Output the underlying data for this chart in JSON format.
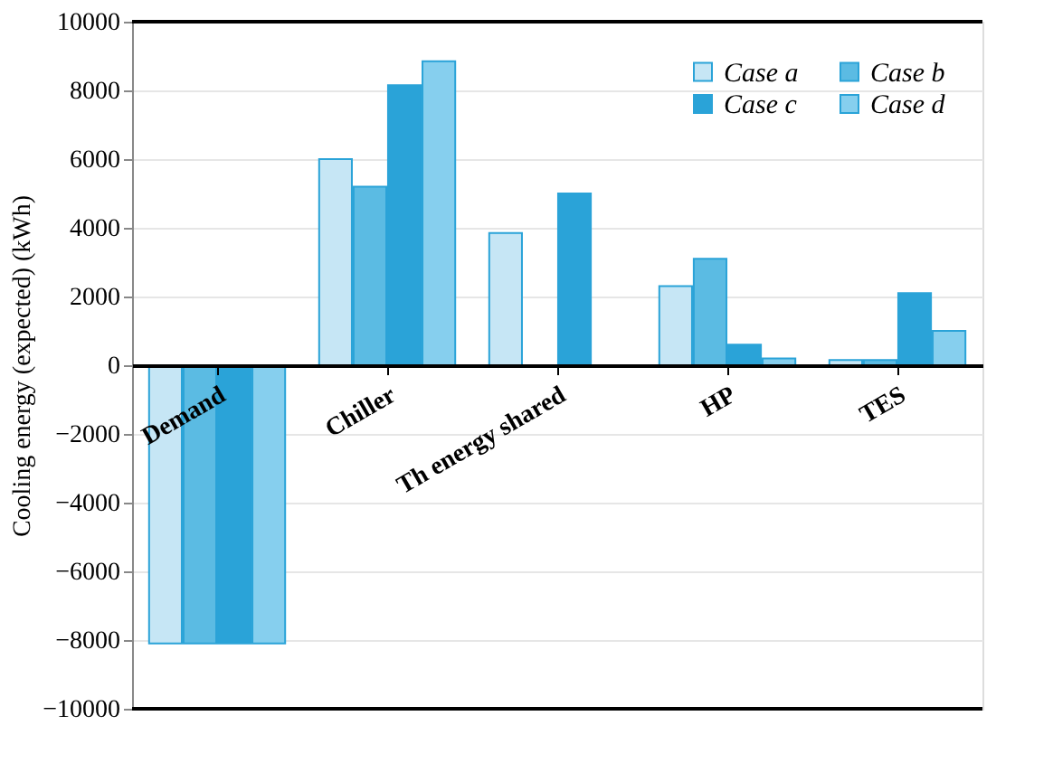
{
  "chart_data": {
    "type": "bar",
    "ylabel": "Cooling energy (expected) (kWh)",
    "categories": [
      "Demand",
      "Chiller",
      "Th energy shared",
      "HP",
      "TES"
    ],
    "series": [
      {
        "name": "Case a",
        "color": "#c6e6f5",
        "values": [
          -8100,
          6000,
          3850,
          2300,
          150
        ]
      },
      {
        "name": "Case b",
        "color": "#5bbbe3",
        "values": [
          -8100,
          5200,
          null,
          3100,
          150
        ]
      },
      {
        "name": "Case c",
        "color": "#2aa3d8",
        "values": [
          -8100,
          8150,
          5000,
          600,
          2100
        ]
      },
      {
        "name": "Case d",
        "color": "#86cfee",
        "values": [
          -8100,
          8850,
          null,
          200,
          1000
        ]
      }
    ],
    "ylim": [
      -10000,
      10000
    ],
    "yticks": [
      -10000,
      -8000,
      -6000,
      -4000,
      -2000,
      0,
      2000,
      4000,
      6000,
      8000,
      10000
    ],
    "grid": "y",
    "legend": "top right"
  }
}
